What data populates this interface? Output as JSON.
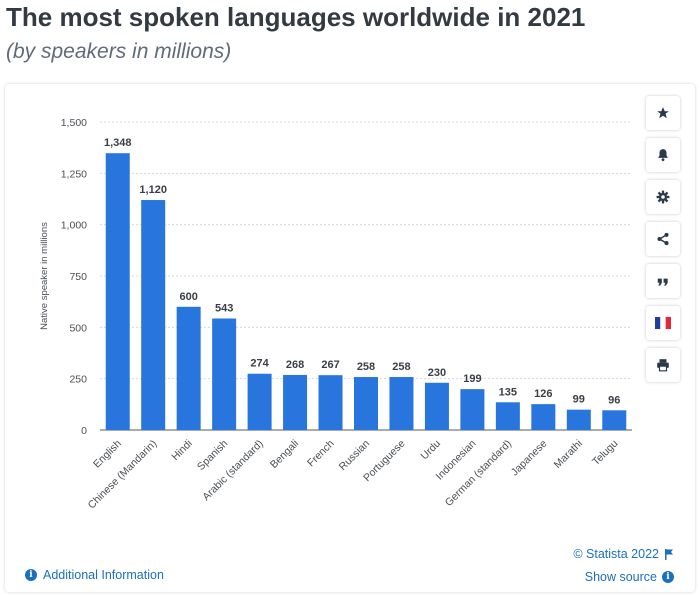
{
  "header": {
    "title": "The most spoken languages worldwide in 2021",
    "subtitle": "(by speakers in millions)"
  },
  "chart_data": {
    "type": "bar",
    "categories": [
      "English",
      "Chinese (Mandarin)",
      "Hindi",
      "Spanish",
      "Arabic (standard)",
      "Bengali",
      "French",
      "Russian",
      "Portuguese",
      "Urdu",
      "Indonesian",
      "German (standard)",
      "Japanese",
      "Marathi",
      "Telugu"
    ],
    "values": [
      1348,
      1120,
      600,
      543,
      274,
      268,
      267,
      258,
      258,
      230,
      199,
      135,
      126,
      99,
      96
    ],
    "value_labels": [
      "1,348",
      "1,120",
      "600",
      "543",
      "274",
      "268",
      "267",
      "258",
      "258",
      "230",
      "199",
      "135",
      "126",
      "99",
      "96"
    ],
    "yticks": [
      0,
      250,
      500,
      750,
      1000,
      1250,
      1500
    ],
    "ytick_labels": [
      "0",
      "250",
      "500",
      "750",
      "1,000",
      "1,250",
      "1,500"
    ],
    "ylim": [
      0,
      1500
    ],
    "ylabel": "Native speaker in millions",
    "xlabel": "",
    "bar_color": "#2876dd",
    "grid": true,
    "legend": "none"
  },
  "toolbar": {
    "items": [
      {
        "name": "star-icon",
        "color": "#2b3a4a"
      },
      {
        "name": "bell-icon",
        "color": "#2b3a4a"
      },
      {
        "name": "gear-icon",
        "color": "#2b3a4a"
      },
      {
        "name": "share-icon",
        "color": "#2b3a4a"
      },
      {
        "name": "quote-icon",
        "color": "#2b3a4a"
      },
      {
        "name": "french-flag-icon",
        "color": "#2b3a4a"
      },
      {
        "name": "print-icon",
        "color": "#2b3a4a"
      }
    ]
  },
  "footer": {
    "additional_info": "Additional Information",
    "copyright": "© Statista 2022",
    "show_source": "Show source"
  }
}
